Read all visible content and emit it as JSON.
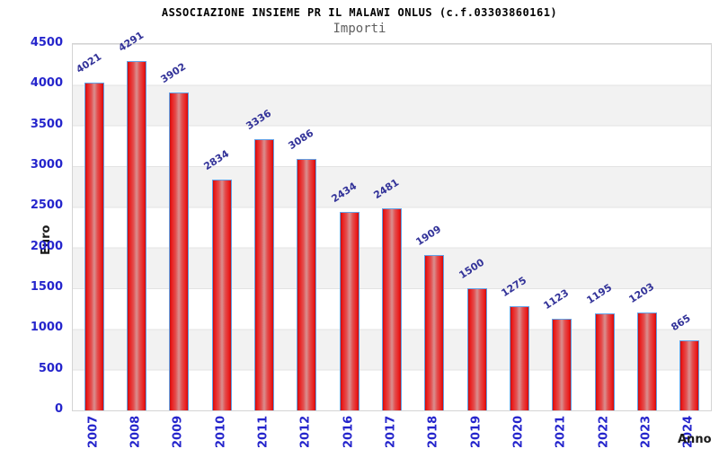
{
  "chart_data": {
    "type": "bar",
    "title": "ASSOCIAZIONE INSIEME PR IL MALAWI ONLUS (c.f.03303860161)",
    "subtitle": "Importi",
    "xlabel": "Anno",
    "ylabel": "Euro",
    "categories": [
      "2007",
      "2008",
      "2009",
      "2010",
      "2011",
      "2012",
      "2016",
      "2017",
      "2018",
      "2019",
      "2020",
      "2021",
      "2022",
      "2023",
      "2024"
    ],
    "values": [
      4021,
      4291,
      3902,
      2834,
      3336,
      3086,
      2434,
      2481,
      1909,
      1500,
      1275,
      1123,
      1195,
      1203,
      865
    ],
    "ylim": [
      0,
      4500
    ],
    "yticks": [
      0,
      500,
      1000,
      1500,
      2000,
      2500,
      3000,
      3500,
      4000,
      4500
    ],
    "grid": "alternating horizontal bands every 500, thin gridlines",
    "legend": "none",
    "bar_value_labels_rotated": true,
    "colors": {
      "bar_border": "#62a1e6",
      "bar_red_dark": "#c40f0f",
      "bar_red": "#ea1a1a",
      "bar_red_mid": "#e34f4f",
      "bar_highlight": "#d99090",
      "axis_tick_color": "#2525cc",
      "value_label_color": "#333399",
      "band_color": "#f2f2f2",
      "grid_line_color": "#e3e3e3",
      "plot_border_color": "#d4d4d4",
      "title_color": "#000000",
      "subtitle_color": "#606060",
      "axis_title_color": "#1a1a1a",
      "plot_background": "#ffffff"
    }
  }
}
